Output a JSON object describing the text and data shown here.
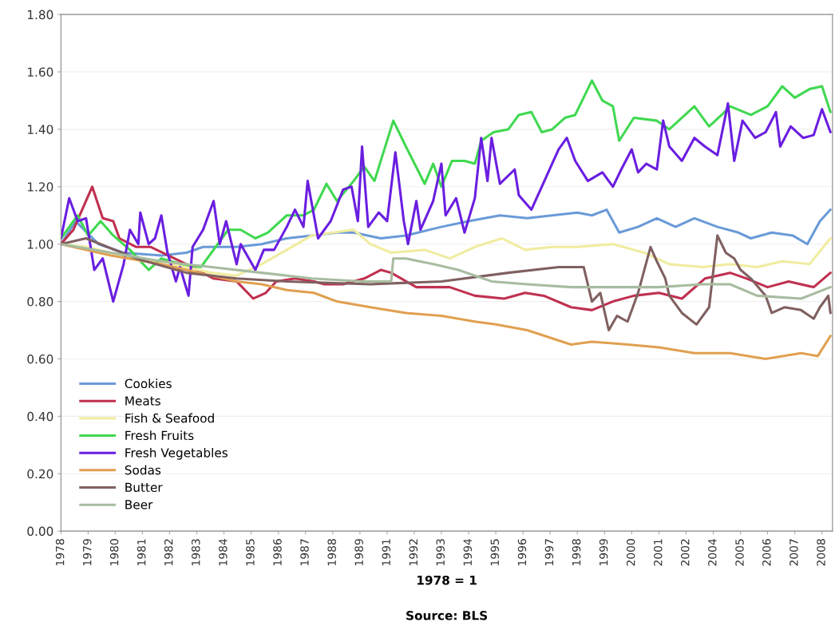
{
  "chart_data": {
    "type": "line",
    "xlabel": "1978 = 1",
    "annotations": [
      "Source: BLS"
    ],
    "xlim": [
      "1978-01",
      "2008-10"
    ],
    "ylim": [
      0,
      1.8
    ],
    "yticks": [
      {
        "value": 0,
        "label": "0.00"
      },
      {
        "value": 0.2,
        "label": "0.20"
      },
      {
        "value": 0.4,
        "label": "0.40"
      },
      {
        "value": 0.6,
        "label": "0.60"
      },
      {
        "value": 0.8,
        "label": "0.80"
      },
      {
        "value": 1.0,
        "label": "1.00"
      },
      {
        "value": 1.2,
        "label": "1.20"
      },
      {
        "value": 1.4,
        "label": "1.40"
      },
      {
        "value": 1.6,
        "label": "1.60"
      },
      {
        "value": 1.8,
        "label": "1.80"
      }
    ],
    "xticks": [
      {
        "value": "1978-01",
        "label": "1978"
      },
      {
        "value": "1979-02",
        "label": "1979"
      },
      {
        "value": "1980-03",
        "label": "1980"
      },
      {
        "value": "1981-04",
        "label": "1981"
      },
      {
        "value": "1982-05",
        "label": "1982"
      },
      {
        "value": "1983-06",
        "label": "1983"
      },
      {
        "value": "1984-07",
        "label": "1984"
      },
      {
        "value": "1985-08",
        "label": "1985"
      },
      {
        "value": "1986-09",
        "label": "1986"
      },
      {
        "value": "1987-10",
        "label": "1987"
      },
      {
        "value": "1988-11",
        "label": "1988"
      },
      {
        "value": "1989-12",
        "label": "1989"
      },
      {
        "value": "1991-01",
        "label": "1991"
      },
      {
        "value": "1992-02",
        "label": "1992"
      },
      {
        "value": "1993-03",
        "label": "1993"
      },
      {
        "value": "1994-04",
        "label": "1994"
      },
      {
        "value": "1995-05",
        "label": "1995"
      },
      {
        "value": "1996-06",
        "label": "1996"
      },
      {
        "value": "1997-07",
        "label": "1997"
      },
      {
        "value": "1998-08",
        "label": "1998"
      },
      {
        "value": "1999-09",
        "label": "1999"
      },
      {
        "value": "2000-10",
        "label": "2000"
      },
      {
        "value": "2001-11",
        "label": "2001"
      },
      {
        "value": "2002-12",
        "label": "2002"
      },
      {
        "value": "2004-01",
        "label": "2004"
      },
      {
        "value": "2005-02",
        "label": "2005"
      },
      {
        "value": "2006-03",
        "label": "2006"
      },
      {
        "value": "2007-04",
        "label": "2007"
      },
      {
        "value": "2008-05",
        "label": "2008"
      }
    ],
    "grid": "y",
    "legend": "bottom left",
    "line_style": "solid",
    "series": [
      {
        "name": "Cookies",
        "color": "#6a9ad8",
        "x": [
          "1978-01",
          "1978-08",
          "1979-07",
          "1980-07",
          "1982-01",
          "1983-01",
          "1983-09",
          "1985-01",
          "1986-01",
          "1987-01",
          "1988-01",
          "1989-01",
          "1989-09",
          "1990-10",
          "1991-10",
          "1993-03",
          "1994-04",
          "1995-07",
          "1996-08",
          "1997-08",
          "1998-08",
          "1999-03",
          "1999-10",
          "2000-04",
          "2001-01",
          "2001-10",
          "2002-07",
          "2003-04",
          "2004-03",
          "2005-01",
          "2005-07",
          "2006-05",
          "2007-03",
          "2007-10",
          "2008-04",
          "2008-09"
        ],
        "values": [
          1.0,
          1.08,
          1.0,
          0.97,
          0.96,
          0.97,
          0.99,
          0.99,
          1.0,
          1.02,
          1.03,
          1.04,
          1.04,
          1.02,
          1.03,
          1.06,
          1.08,
          1.1,
          1.09,
          1.1,
          1.11,
          1.1,
          1.12,
          1.04,
          1.06,
          1.09,
          1.06,
          1.09,
          1.06,
          1.04,
          1.02,
          1.04,
          1.03,
          1.0,
          1.08,
          1.12
        ]
      },
      {
        "name": "Meats",
        "color": "#c03050",
        "x": [
          "1978-01",
          "1978-07",
          "1979-04",
          "1979-09",
          "1980-02",
          "1980-05",
          "1981-01",
          "1981-08",
          "1983-01",
          "1984-02",
          "1985-01",
          "1985-09",
          "1986-03",
          "1986-08",
          "1987-05",
          "1988-02",
          "1988-07",
          "1989-04",
          "1990-02",
          "1990-10",
          "1991-03",
          "1992-03",
          "1993-07",
          "1994-07",
          "1995-09",
          "1996-07",
          "1997-04",
          "1998-05",
          "1999-03",
          "2000-01",
          "2000-11",
          "2001-11",
          "2002-10",
          "2003-09",
          "2004-09",
          "2005-05",
          "2006-03",
          "2007-01",
          "2008-01",
          "2008-09"
        ],
        "values": [
          1.0,
          1.05,
          1.2,
          1.09,
          1.08,
          1.02,
          0.99,
          0.99,
          0.93,
          0.88,
          0.87,
          0.81,
          0.83,
          0.87,
          0.88,
          0.87,
          0.86,
          0.86,
          0.88,
          0.91,
          0.9,
          0.85,
          0.85,
          0.82,
          0.81,
          0.83,
          0.82,
          0.78,
          0.77,
          0.8,
          0.82,
          0.83,
          0.81,
          0.88,
          0.9,
          0.88,
          0.85,
          0.87,
          0.85,
          0.9
        ]
      },
      {
        "name": "Fish & Seafood",
        "color": "#f0eca0",
        "x": [
          "1978-01",
          "1979-01",
          "1980-01",
          "1981-01",
          "1982-01",
          "1983-01",
          "1984-01",
          "1985-01",
          "1986-01",
          "1987-01",
          "1988-01",
          "1989-09",
          "1990-05",
          "1991-03",
          "1992-07",
          "1993-07",
          "1994-07",
          "1995-08",
          "1996-07",
          "1997-08",
          "1998-08",
          "2000-01",
          "2001-04",
          "2002-04",
          "2003-08",
          "2004-09",
          "2005-10",
          "2006-10",
          "2007-11",
          "2008-09"
        ],
        "values": [
          1.0,
          0.99,
          0.97,
          0.95,
          0.94,
          0.92,
          0.9,
          0.89,
          0.93,
          0.98,
          1.03,
          1.05,
          1.0,
          0.97,
          0.98,
          0.95,
          0.99,
          1.02,
          0.98,
          0.99,
          0.99,
          1.0,
          0.97,
          0.93,
          0.92,
          0.93,
          0.92,
          0.94,
          0.93,
          1.02
        ]
      },
      {
        "name": "Fresh Fruits",
        "color": "#40d850",
        "x": [
          "1978-01",
          "1978-09",
          "1979-02",
          "1979-08",
          "1980-02",
          "1980-10",
          "1981-07",
          "1982-01",
          "1982-11",
          "1983-08",
          "1984-09",
          "1985-03",
          "1985-10",
          "1986-04",
          "1987-01",
          "1987-09",
          "1988-02",
          "1988-08",
          "1989-01",
          "1989-09",
          "1990-02",
          "1990-07",
          "1991-04",
          "1991-10",
          "1992-07",
          "1992-11",
          "1993-03",
          "1993-08",
          "1994-02",
          "1994-07",
          "1994-10",
          "1995-04",
          "1995-11",
          "1996-04",
          "1996-10",
          "1997-03",
          "1997-08",
          "1998-02",
          "1998-07",
          "1999-03",
          "1999-08",
          "2000-01",
          "2000-04",
          "2000-11",
          "2001-10",
          "2002-04",
          "2003-04",
          "2003-11",
          "2004-05",
          "2004-09",
          "2005-07",
          "2006-03",
          "2006-10",
          "2007-04",
          "2007-11",
          "2008-05",
          "2008-09"
        ],
        "values": [
          1.02,
          1.1,
          1.03,
          1.08,
          1.03,
          0.98,
          0.91,
          0.95,
          0.93,
          0.92,
          1.05,
          1.05,
          1.02,
          1.04,
          1.1,
          1.1,
          1.12,
          1.21,
          1.15,
          1.22,
          1.27,
          1.22,
          1.43,
          1.34,
          1.21,
          1.28,
          1.2,
          1.29,
          1.29,
          1.28,
          1.36,
          1.39,
          1.4,
          1.45,
          1.46,
          1.39,
          1.4,
          1.44,
          1.45,
          1.57,
          1.5,
          1.48,
          1.36,
          1.44,
          1.43,
          1.4,
          1.48,
          1.41,
          1.45,
          1.48,
          1.45,
          1.48,
          1.55,
          1.51,
          1.54,
          1.55,
          1.46
        ]
      },
      {
        "name": "Fresh Vegetables",
        "color": "#6a1ee0",
        "x": [
          "1978-01",
          "1978-05",
          "1978-09",
          "1979-01",
          "1979-05",
          "1979-09",
          "1980-02",
          "1980-07",
          "1980-10",
          "1981-02",
          "1981-03",
          "1981-07",
          "1981-10",
          "1982-01",
          "1982-04",
          "1982-08",
          "1982-10",
          "1983-02",
          "1983-04",
          "1983-09",
          "1984-02",
          "1984-05",
          "1984-08",
          "1985-01",
          "1985-03",
          "1985-10",
          "1986-02",
          "1986-07",
          "1987-01",
          "1987-05",
          "1987-09",
          "1987-11",
          "1988-04",
          "1988-10",
          "1989-04",
          "1989-08",
          "1989-11",
          "1990-01",
          "1990-04",
          "1990-09",
          "1991-01",
          "1991-05",
          "1991-09",
          "1991-11",
          "1992-03",
          "1992-05",
          "1992-11",
          "1993-03",
          "1993-05",
          "1993-10",
          "1994-02",
          "1994-07",
          "1994-10",
          "1995-01",
          "1995-03",
          "1995-07",
          "1996-02",
          "1996-04",
          "1996-10",
          "1997-03",
          "1997-11",
          "1998-03",
          "1998-07",
          "1999-01",
          "1999-08",
          "2000-01",
          "2000-05",
          "2000-10",
          "2001-01",
          "2001-05",
          "2001-10",
          "2002-01",
          "2002-04",
          "2002-10",
          "2003-04",
          "2003-09",
          "2004-03",
          "2004-08",
          "2004-11",
          "2005-03",
          "2005-09",
          "2006-02",
          "2006-07",
          "2006-09",
          "2007-02",
          "2007-08",
          "2008-01",
          "2008-05",
          "2008-09"
        ],
        "values": [
          1.02,
          1.16,
          1.08,
          1.09,
          0.91,
          0.95,
          0.8,
          0.93,
          1.05,
          1.0,
          1.11,
          1.0,
          1.02,
          1.1,
          0.97,
          0.87,
          0.92,
          0.82,
          0.99,
          1.05,
          1.15,
          1.0,
          1.08,
          0.93,
          1.0,
          0.91,
          0.98,
          0.98,
          1.06,
          1.12,
          1.06,
          1.22,
          1.02,
          1.08,
          1.19,
          1.2,
          1.08,
          1.34,
          1.06,
          1.11,
          1.08,
          1.32,
          1.08,
          1.0,
          1.15,
          1.05,
          1.15,
          1.28,
          1.1,
          1.16,
          1.04,
          1.16,
          1.37,
          1.22,
          1.37,
          1.21,
          1.26,
          1.17,
          1.12,
          1.2,
          1.33,
          1.37,
          1.29,
          1.22,
          1.25,
          1.2,
          1.26,
          1.33,
          1.25,
          1.28,
          1.26,
          1.43,
          1.34,
          1.29,
          1.37,
          1.34,
          1.31,
          1.49,
          1.29,
          1.43,
          1.37,
          1.39,
          1.46,
          1.34,
          1.41,
          1.37,
          1.38,
          1.47,
          1.39
        ]
      },
      {
        "name": "Sodas",
        "color": "#e0a050",
        "x": [
          "1978-01",
          "1980-01",
          "1982-01",
          "1983-01",
          "1984-01",
          "1985-01",
          "1986-01",
          "1987-01",
          "1988-02",
          "1989-01",
          "1990-05",
          "1991-10",
          "1993-03",
          "1994-07",
          "1995-05",
          "1996-08",
          "1998-05",
          "1999-03",
          "2000-08",
          "2001-11",
          "2003-04",
          "2004-09",
          "2006-02",
          "2007-07",
          "2008-03",
          "2008-09"
        ],
        "values": [
          1.0,
          0.96,
          0.93,
          0.91,
          0.89,
          0.87,
          0.86,
          0.84,
          0.83,
          0.8,
          0.78,
          0.76,
          0.75,
          0.73,
          0.72,
          0.7,
          0.65,
          0.66,
          0.65,
          0.64,
          0.62,
          0.62,
          0.6,
          0.62,
          0.61,
          0.68
        ]
      },
      {
        "name": "Butter",
        "color": "#806060",
        "x": [
          "1978-01",
          "1979-01",
          "1981-01",
          "1983-01",
          "1985-01",
          "1987-01",
          "1990-05",
          "1993-03",
          "1995-11",
          "1997-11",
          "1998-11",
          "1999-03",
          "1999-07",
          "1999-11",
          "2000-03",
          "2000-08",
          "2001-01",
          "2001-07",
          "2001-10",
          "2002-02",
          "2002-04",
          "2002-10",
          "2003-05",
          "2003-11",
          "2004-03",
          "2004-07",
          "2004-11",
          "2005-02",
          "2005-07",
          "2006-02",
          "2006-05",
          "2006-11",
          "2007-07",
          "2008-01",
          "2008-04",
          "2008-08",
          "2008-09"
        ],
        "values": [
          1.0,
          1.02,
          0.95,
          0.9,
          0.88,
          0.87,
          0.86,
          0.87,
          0.9,
          0.92,
          0.92,
          0.8,
          0.83,
          0.7,
          0.75,
          0.73,
          0.83,
          0.99,
          0.94,
          0.88,
          0.82,
          0.76,
          0.72,
          0.78,
          1.03,
          0.97,
          0.95,
          0.91,
          0.88,
          0.82,
          0.76,
          0.78,
          0.77,
          0.74,
          0.78,
          0.82,
          0.76
        ]
      },
      {
        "name": "Beer",
        "color": "#a8bca0",
        "x": [
          "1978-01",
          "1980-01",
          "1982-01",
          "1984-01",
          "1986-01",
          "1988-01",
          "1990-01",
          "1991-03",
          "1991-04",
          "1991-10",
          "1992-11",
          "1993-11",
          "1995-03",
          "1996-08",
          "1998-05",
          "1999-03",
          "2001-11",
          "2003-08",
          "2004-09",
          "2005-10",
          "2007-07",
          "2008-09"
        ],
        "values": [
          1.0,
          0.97,
          0.94,
          0.92,
          0.9,
          0.88,
          0.87,
          0.87,
          0.95,
          0.95,
          0.93,
          0.91,
          0.87,
          0.86,
          0.85,
          0.85,
          0.85,
          0.86,
          0.86,
          0.82,
          0.81,
          0.85
        ]
      }
    ]
  }
}
